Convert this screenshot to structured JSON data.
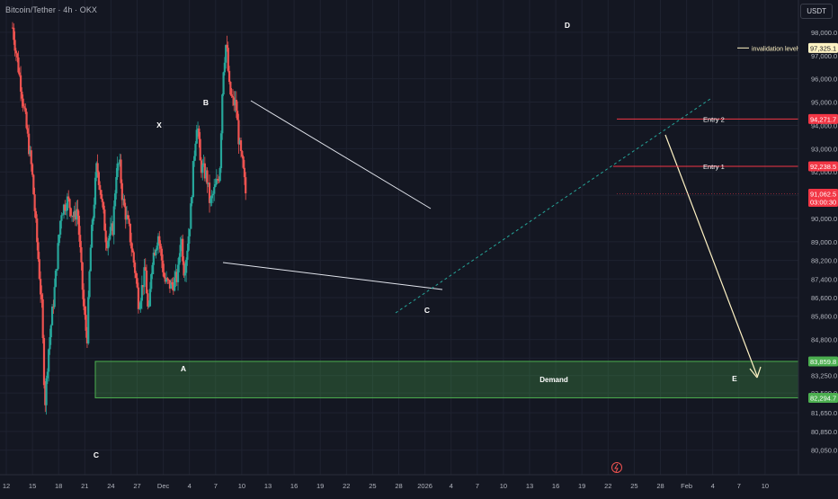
{
  "header": {
    "symbol_title": "Bitcoin/Tether · 4h · OKX",
    "currency": "USDT"
  },
  "chart_data": {
    "type": "candlestick",
    "title": "Bitcoin/Tether · 4h · OKX",
    "ylim": [
      79300,
      99000
    ],
    "y_ticks": [
      "98,000.0",
      "97,000.0",
      "96,000.0",
      "95,000.0",
      "94,000.0",
      "93,000.0",
      "92,000.0",
      "91,000.0",
      "90,000.0",
      "89,000.0",
      "88,200.0",
      "87,400.0",
      "86,600.0",
      "85,800.0",
      "84,800.0",
      "84,000.0",
      "83,250.0",
      "82,500.0",
      "81,650.0",
      "80,850.0",
      "80,050.0"
    ],
    "x_ticks": [
      "12",
      "15",
      "18",
      "21",
      "24",
      "27",
      "Dec",
      "4",
      "7",
      "10",
      "13",
      "16",
      "19",
      "22",
      "25",
      "28",
      "2026",
      "4",
      "7",
      "10",
      "13",
      "16",
      "19",
      "22",
      "25",
      "28",
      "Feb",
      "4",
      "7",
      "10"
    ],
    "price_path": [
      {
        "x": 12,
        "price": 98200
      },
      {
        "x": 15,
        "price": 95300
      },
      {
        "x": 18,
        "price": 92000
      },
      {
        "x": 21,
        "price": 86200
      },
      {
        "x": 22,
        "price": 82000
      },
      {
        "x": 23,
        "price": 84200
      },
      {
        "x": 25,
        "price": 87000
      },
      {
        "x": 27,
        "price": 90300
      },
      {
        "x": 29,
        "price": 90800
      },
      {
        "x": 31,
        "price": 90000
      },
      {
        "x": 32,
        "price": 90500
      },
      {
        "x": 34,
        "price": 86100
      },
      {
        "x": 35,
        "price": 84800
      },
      {
        "x": 36,
        "price": 88500
      },
      {
        "x": 38,
        "price": 92300
      },
      {
        "x": 39,
        "price": 91400
      },
      {
        "x": 41,
        "price": 89000
      },
      {
        "x": 43,
        "price": 89600
      },
      {
        "x": 44,
        "price": 92000
      },
      {
        "x": 45,
        "price": 92400
      },
      {
        "x": 46,
        "price": 90800
      },
      {
        "x": 48,
        "price": 89500
      },
      {
        "x": 50,
        "price": 87600
      },
      {
        "x": 51,
        "price": 86300
      },
      {
        "x": 53,
        "price": 87800
      },
      {
        "x": 54,
        "price": 85600
      },
      {
        "x": 55,
        "price": 88200
      },
      {
        "x": 57,
        "price": 89300
      },
      {
        "x": 59,
        "price": 87300
      },
      {
        "x": 61,
        "price": 87100
      },
      {
        "x": 63,
        "price": 87500
      },
      {
        "x": 64,
        "price": 89400
      },
      {
        "x": 65,
        "price": 87700
      },
      {
        "x": 66,
        "price": 88800
      },
      {
        "x": 67,
        "price": 90200
      },
      {
        "x": 68,
        "price": 92600
      },
      {
        "x": 69,
        "price": 94300
      },
      {
        "x": 70,
        "price": 92300
      },
      {
        "x": 72,
        "price": 91800
      },
      {
        "x": 73,
        "price": 90600
      },
      {
        "x": 75,
        "price": 91500
      },
      {
        "x": 76,
        "price": 92000
      },
      {
        "x": 77,
        "price": 96300
      },
      {
        "x": 78,
        "price": 97600
      },
      {
        "x": 79,
        "price": 95500
      },
      {
        "x": 80,
        "price": 95000
      },
      {
        "x": 81,
        "price": 94900
      },
      {
        "x": 82,
        "price": 93200
      },
      {
        "x": 83,
        "price": 92300
      },
      {
        "x": 84,
        "price": 91100
      }
    ],
    "price_labels": [
      {
        "id": "invalidation",
        "price": 97325.1,
        "text": "97,325.1",
        "color": "#fff3c4",
        "text_color": "#141722",
        "note": "invalidation level"
      },
      {
        "id": "entry2",
        "price": 94271.7,
        "text": "94,271.7",
        "color": "#f23645",
        "text_color": "#ffffff",
        "note": "Entry 2"
      },
      {
        "id": "entry1",
        "price": 92238.5,
        "text": "92,238.5",
        "color": "#f23645",
        "text_color": "#ffffff",
        "note": "Entry 1"
      },
      {
        "id": "last",
        "price": 91062.5,
        "text": "91,062.5",
        "sub": "03:00:30",
        "color": "#f23645",
        "text_color": "#ffffff"
      },
      {
        "id": "demand_top",
        "price": 83859.8,
        "text": "83,859.8",
        "color": "#4caf50",
        "text_color": "#ffffff"
      },
      {
        "id": "demand_bottom",
        "price": 82294.7,
        "text": "82,294.7",
        "color": "#4caf50",
        "text_color": "#ffffff"
      }
    ],
    "zones": [
      {
        "label": "Demand",
        "from": 82294.7,
        "to": 83859.8,
        "color": "#4caf50"
      }
    ],
    "wave_labels": [
      "C",
      "X",
      "A",
      "B",
      "C",
      "D",
      "E"
    ],
    "colors": {
      "bg": "#141722",
      "up": "#26a69a",
      "down": "#ef5350",
      "grid": "#1e2230",
      "axis_text": "#b2b5be"
    }
  }
}
